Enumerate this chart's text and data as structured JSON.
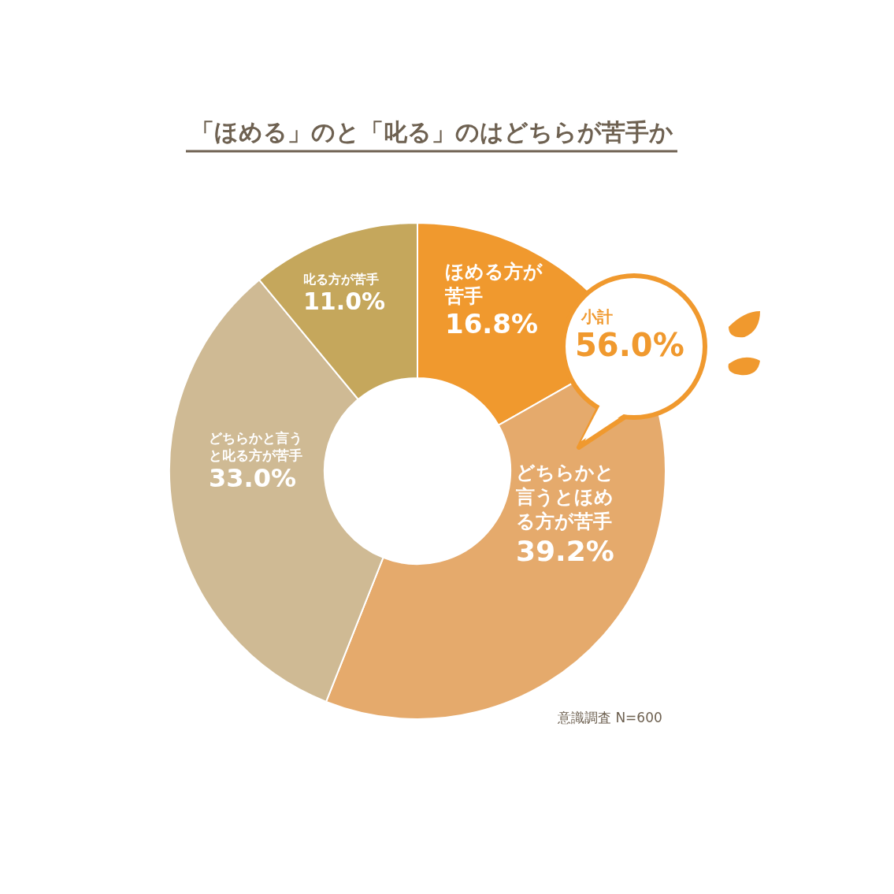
{
  "chart_data": {
    "type": "donut",
    "title": "「ほめる」のと「叱る」のはどちらが苦手か",
    "categories": [
      "ほめる方が苦手",
      "どちらかと言うとほめる方が苦手",
      "どちらかと言うと叱る方が苦手",
      "叱る方が苦手"
    ],
    "values": [
      16.8,
      39.2,
      33.0,
      11.0
    ],
    "value_labels": [
      "16.8%",
      "39.2%",
      "33.0%",
      "11.0%"
    ],
    "colors": [
      "#f0992e",
      "#e5aa6c",
      "#cfba94",
      "#c5a75c"
    ],
    "annotations": [
      "小計 56.0%",
      "意識調査 N=600"
    ],
    "legend": false
  }
}
